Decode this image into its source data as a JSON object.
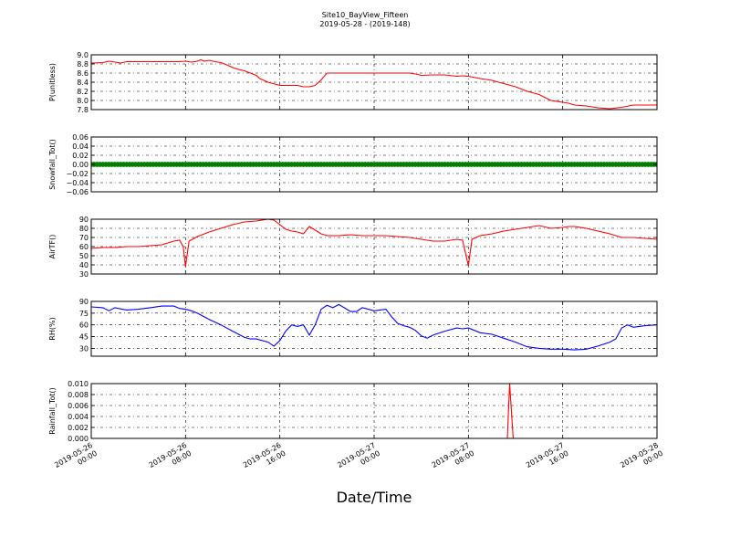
{
  "figure": {
    "title": "Site10_BayView_Fifteen",
    "subtitle": "2019-05-28 - (2019-148)",
    "xlabel": "Date/Time"
  },
  "chart_data": [
    {
      "type": "line",
      "ylabel": "P(unitless)",
      "color": "#ff0000",
      "xlim": [
        0,
        48
      ],
      "ylim": [
        7.8,
        9.0
      ],
      "yticks": [
        "7.8",
        "8.0",
        "8.2",
        "8.4",
        "8.6",
        "8.8",
        "9.0"
      ],
      "ytick_values": [
        7.8,
        8.0,
        8.2,
        8.4,
        8.6,
        8.8,
        9.0
      ],
      "x": [
        0,
        1,
        1.5,
        2,
        2.5,
        3,
        4,
        6,
        7.5,
        8,
        8.5,
        9,
        9.3,
        9.6,
        10,
        10.5,
        11,
        11.5,
        12,
        12.5,
        13,
        13.5,
        14,
        14.3,
        15,
        16,
        17,
        17.5,
        18,
        18.5,
        19,
        19.5,
        20,
        21,
        23,
        27,
        27.5,
        28,
        29,
        30,
        31,
        31.5,
        32,
        33,
        34,
        35,
        36,
        37,
        38,
        39,
        40,
        40.5,
        41,
        42,
        43,
        44,
        45,
        46,
        47,
        48
      ],
      "y": [
        8.82,
        8.83,
        8.86,
        8.84,
        8.82,
        8.85,
        8.85,
        8.85,
        8.85,
        8.86,
        8.84,
        8.86,
        8.89,
        8.86,
        8.88,
        8.85,
        8.83,
        8.78,
        8.72,
        8.68,
        8.65,
        8.6,
        8.55,
        8.48,
        8.4,
        8.33,
        8.33,
        8.33,
        8.3,
        8.3,
        8.33,
        8.45,
        8.6,
        8.6,
        8.6,
        8.6,
        8.58,
        8.55,
        8.56,
        8.56,
        8.53,
        8.54,
        8.53,
        8.48,
        8.44,
        8.37,
        8.3,
        8.2,
        8.13,
        8.0,
        7.96,
        7.94,
        7.9,
        7.88,
        7.84,
        7.82,
        7.85,
        7.9,
        7.9,
        7.9
      ]
    },
    {
      "type": "scatter",
      "ylabel": "Snowfall_Tot()",
      "color": "#008000",
      "xlim": [
        0,
        48
      ],
      "ylim": [
        -0.06,
        0.06
      ],
      "yticks": [
        "−0.06",
        "−0.04",
        "−0.02",
        "0.00",
        "0.02",
        "0.04",
        "0.06"
      ],
      "ytick_values": [
        -0.06,
        -0.04,
        -0.02,
        0.0,
        0.02,
        0.04,
        0.06
      ],
      "constant_value": 0.0,
      "sample_interval_hours": 0.25
    },
    {
      "type": "line",
      "ylabel": "AirTF()",
      "color": "#ff0000",
      "xlim": [
        0,
        48
      ],
      "ylim": [
        30,
        90
      ],
      "yticks": [
        "30",
        "40",
        "50",
        "60",
        "70",
        "80",
        "90"
      ],
      "ytick_values": [
        30,
        40,
        50,
        60,
        70,
        80,
        90
      ],
      "x": [
        0,
        1,
        2,
        3,
        4,
        5,
        6,
        7,
        7.5,
        7.8,
        8.0,
        8.3,
        9,
        10,
        11,
        12,
        13,
        14,
        15,
        15.5,
        16,
        16.5,
        17,
        17.5,
        18,
        18.5,
        19,
        19.5,
        20,
        21,
        22,
        23,
        24,
        25,
        26,
        27,
        28,
        29,
        30,
        31,
        31.5,
        31.8,
        32.0,
        32.3,
        33,
        34,
        35,
        36,
        37,
        38,
        39,
        40,
        40.5,
        41,
        42,
        43,
        44,
        45,
        46,
        47,
        48
      ],
      "y": [
        58,
        59,
        59,
        60,
        60,
        61,
        62,
        66,
        67,
        60,
        38,
        66,
        71,
        76,
        80,
        84,
        87,
        88,
        90,
        89,
        84,
        79,
        77,
        76,
        74,
        82,
        78,
        74,
        72,
        72,
        73,
        72,
        72,
        72,
        71,
        70,
        68,
        66,
        66,
        68,
        67,
        50,
        39,
        68,
        72,
        74,
        77,
        79,
        81,
        83,
        80,
        81,
        82,
        82,
        80,
        77,
        74,
        70,
        70,
        69,
        68
      ]
    },
    {
      "type": "line",
      "ylabel": "RH(%)",
      "color": "#0000ff",
      "xlim": [
        0,
        48
      ],
      "ylim": [
        20,
        90
      ],
      "yticks": [
        "30",
        "45",
        "60",
        "75",
        "90"
      ],
      "ytick_values": [
        30,
        45,
        60,
        75,
        90
      ],
      "x": [
        0,
        1,
        1.5,
        2,
        3,
        4,
        5,
        6,
        7,
        7.5,
        8,
        8.5,
        9,
        10,
        11,
        12,
        13,
        13.5,
        14,
        15,
        15.5,
        16,
        16.5,
        17,
        17.5,
        18,
        18.5,
        19,
        19.5,
        20,
        20.5,
        21,
        22,
        22.5,
        23,
        24,
        25,
        25.5,
        26,
        26.5,
        27,
        27.5,
        28,
        28.5,
        29,
        30,
        31,
        31.5,
        32,
        33,
        34,
        35,
        36,
        37,
        38,
        39,
        40,
        41,
        42,
        43,
        44,
        44.5,
        45,
        45.5,
        46,
        47,
        48
      ],
      "y": [
        83,
        82,
        78,
        82,
        79,
        80,
        82,
        84,
        84,
        81,
        80,
        78,
        75,
        67,
        60,
        52,
        44,
        42,
        42,
        38,
        33,
        40,
        52,
        60,
        58,
        60,
        47,
        60,
        80,
        85,
        82,
        86,
        77,
        77,
        82,
        78,
        80,
        70,
        62,
        59,
        57,
        53,
        46,
        43,
        47,
        52,
        56,
        55,
        56,
        50,
        48,
        43,
        38,
        32,
        30,
        29,
        29,
        28,
        29,
        33,
        38,
        42,
        56,
        60,
        57,
        59,
        60
      ]
    },
    {
      "type": "line",
      "ylabel": "Rainfall_Tot()",
      "color": "#ff0000",
      "xlim": [
        0,
        48
      ],
      "ylim": [
        0.0,
        0.01
      ],
      "yticks": [
        "0.000",
        "0.002",
        "0.004",
        "0.006",
        "0.008",
        "0.010"
      ],
      "ytick_values": [
        0.0,
        0.002,
        0.004,
        0.006,
        0.008,
        0.01
      ],
      "x": [
        0,
        35.3,
        35.5,
        35.8,
        48
      ],
      "y": [
        0,
        0,
        0.01,
        0,
        0
      ]
    }
  ],
  "x_axis": {
    "ticks": [
      {
        "label1": "2019-05-26",
        "label2": "00:00",
        "value": 0
      },
      {
        "label1": "2019-05-26",
        "label2": "08:00",
        "value": 8
      },
      {
        "label1": "2019-05-26",
        "label2": "16:00",
        "value": 16
      },
      {
        "label1": "2019-05-27",
        "label2": "00:00",
        "value": 24
      },
      {
        "label1": "2019-05-27",
        "label2": "08:00",
        "value": 32
      },
      {
        "label1": "2019-05-27",
        "label2": "16:00",
        "value": 40
      },
      {
        "label1": "2019-05-28",
        "label2": "00:00",
        "value": 48
      }
    ]
  }
}
